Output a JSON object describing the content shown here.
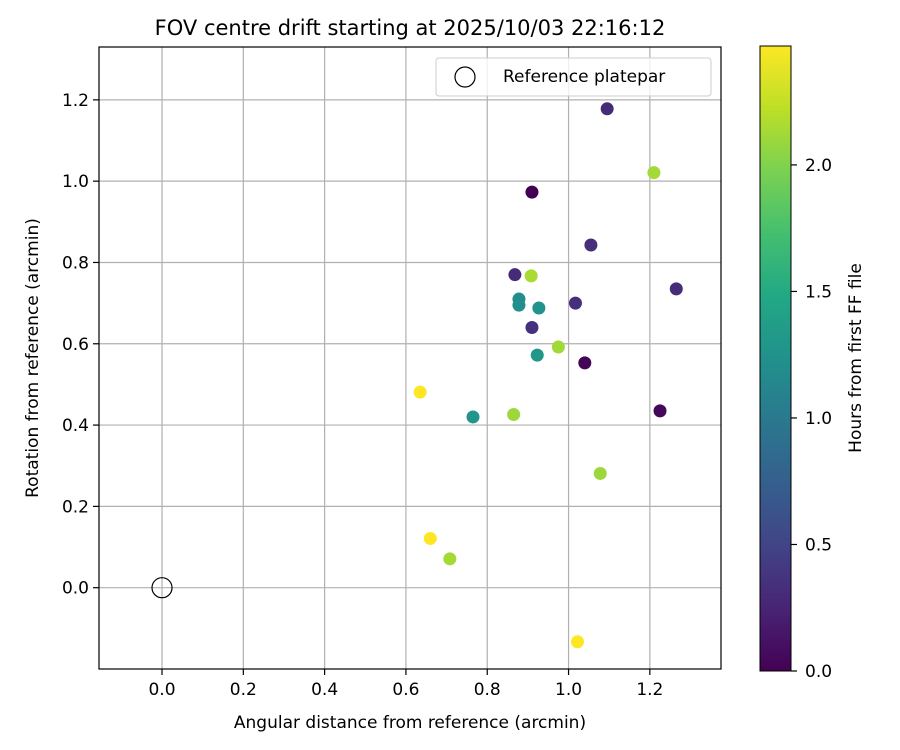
{
  "chart_data": {
    "type": "scatter",
    "title": "FOV centre drift starting at 2025/10/03 22:16:12",
    "xlabel": "Angular distance from reference (arcmin)",
    "ylabel": "Rotation from reference (arcmin)",
    "xlim": [
      -0.155,
      1.375
    ],
    "ylim": [
      -0.2,
      1.33
    ],
    "xticks": [
      0.0,
      0.2,
      0.4,
      0.6,
      0.8,
      1.0,
      1.2
    ],
    "yticks": [
      0.0,
      0.2,
      0.4,
      0.6,
      0.8,
      1.0,
      1.2
    ],
    "xtick_labels": [
      "0.0",
      "0.2",
      "0.4",
      "0.6",
      "0.8",
      "1.0",
      "1.2"
    ],
    "ytick_labels": [
      "0.0",
      "0.2",
      "0.4",
      "0.6",
      "0.8",
      "1.0",
      "1.2"
    ],
    "grid": true,
    "legend": {
      "position": "top-right",
      "entries": [
        {
          "label": "Reference platepar",
          "marker": "open-circle"
        }
      ]
    },
    "reference_point": {
      "x": 0.0,
      "y": 0.0,
      "label": "Reference platepar"
    },
    "colorbar": {
      "label": "Hours from first FF file",
      "colormap": "viridis",
      "range": [
        0.0,
        2.47
      ],
      "ticks": [
        0.0,
        0.5,
        1.0,
        1.5,
        2.0
      ],
      "tick_labels": [
        "0.0",
        "0.5",
        "1.0",
        "1.5",
        "2.0"
      ]
    },
    "series": [
      {
        "name": "FOV centre drift",
        "points": [
          {
            "x": 0.91,
            "y": 0.973,
            "hours": 0.0
          },
          {
            "x": 1.04,
            "y": 0.553,
            "hours": 0.02
          },
          {
            "x": 1.225,
            "y": 0.435,
            "hours": 0.05
          },
          {
            "x": 1.095,
            "y": 1.178,
            "hours": 0.3
          },
          {
            "x": 1.265,
            "y": 0.735,
            "hours": 0.32
          },
          {
            "x": 1.055,
            "y": 0.843,
            "hours": 0.33
          },
          {
            "x": 0.868,
            "y": 0.77,
            "hours": 0.3
          },
          {
            "x": 1.017,
            "y": 0.7,
            "hours": 0.34
          },
          {
            "x": 0.91,
            "y": 0.64,
            "hours": 0.35
          },
          {
            "x": 0.878,
            "y": 0.71,
            "hours": 1.2
          },
          {
            "x": 0.878,
            "y": 0.695,
            "hours": 1.22
          },
          {
            "x": 0.927,
            "y": 0.688,
            "hours": 1.25
          },
          {
            "x": 0.923,
            "y": 0.572,
            "hours": 1.3
          },
          {
            "x": 0.765,
            "y": 0.42,
            "hours": 1.28
          },
          {
            "x": 0.908,
            "y": 0.767,
            "hours": 2.15
          },
          {
            "x": 0.975,
            "y": 0.592,
            "hours": 2.12
          },
          {
            "x": 0.865,
            "y": 0.426,
            "hours": 2.1
          },
          {
            "x": 1.078,
            "y": 0.281,
            "hours": 2.1
          },
          {
            "x": 1.21,
            "y": 1.021,
            "hours": 2.13
          },
          {
            "x": 0.708,
            "y": 0.071,
            "hours": 2.13
          },
          {
            "x": 0.635,
            "y": 0.481,
            "hours": 2.47
          },
          {
            "x": 0.66,
            "y": 0.121,
            "hours": 2.47
          },
          {
            "x": 1.022,
            "y": -0.133,
            "hours": 2.47
          }
        ]
      }
    ]
  }
}
